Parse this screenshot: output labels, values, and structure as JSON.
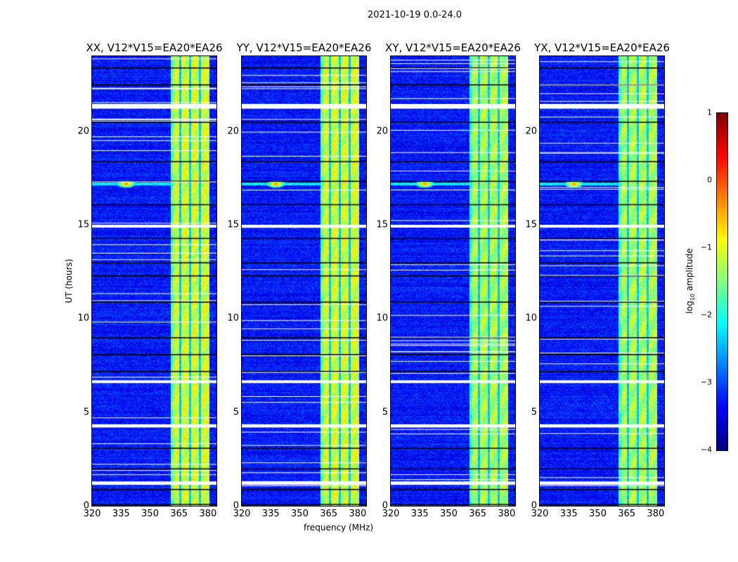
{
  "suptitle": "2021-10-19 0.0-24.0",
  "chart_data": [
    {
      "type": "heatmap",
      "panels": [
        {
          "title": "XX, V12*V15=EA20*EA26"
        },
        {
          "title": "YY, V12*V15=EA20*EA26"
        },
        {
          "title": "XY, V12*V15=EA20*EA26"
        },
        {
          "title": "YX, V12*V15=EA20*EA26"
        }
      ],
      "xlabel": "frequency (MHz)",
      "ylabel": "UT (hours)",
      "xlim": [
        320,
        384.4
      ],
      "ylim": [
        0,
        24
      ],
      "xticks": [
        "320",
        "335",
        "350",
        "365",
        "380"
      ],
      "xtick_values": [
        320,
        335,
        350,
        365,
        380
      ],
      "yticks": [
        "0",
        "5",
        "10",
        "15",
        "20"
      ],
      "ytick_values": [
        0,
        5,
        10,
        15,
        20
      ],
      "background_level": -3.3,
      "band": {
        "from_mhz": 360.7,
        "to_mhz": 380.4,
        "level": -1.1,
        "dark_stripes_mhz": [
          365.5,
          370.6,
          375.7
        ]
      },
      "rfi": {
        "freq_mhz": 337.5,
        "time_h": 17.2,
        "level": 0.0
      },
      "flagged_times_h": [
        [
          21.2,
          21.45
        ],
        [
          14.85,
          15.0
        ],
        [
          6.55,
          6.7
        ],
        [
          4.18,
          4.35
        ],
        [
          1.12,
          1.3
        ]
      ],
      "blank_rows_h": [
        23.4,
        22.5,
        20.5,
        18.4,
        17.35,
        16.1,
        14.3,
        13.0,
        12.3,
        10.9,
        9.0,
        8.1,
        7.2,
        3.1,
        2.0,
        0.9,
        0.1
      ],
      "colorbar": {
        "label": "log10 amplitude",
        "label_main": "log",
        "label_sub": "10",
        "label_rest": " amplitude",
        "range": [
          -4,
          1
        ],
        "ticks": [
          "1",
          "0",
          "−1",
          "−2",
          "−3",
          "−4"
        ],
        "tick_values": [
          1,
          0,
          -1,
          -2,
          -3,
          -4
        ],
        "colormap": "jet"
      }
    }
  ]
}
